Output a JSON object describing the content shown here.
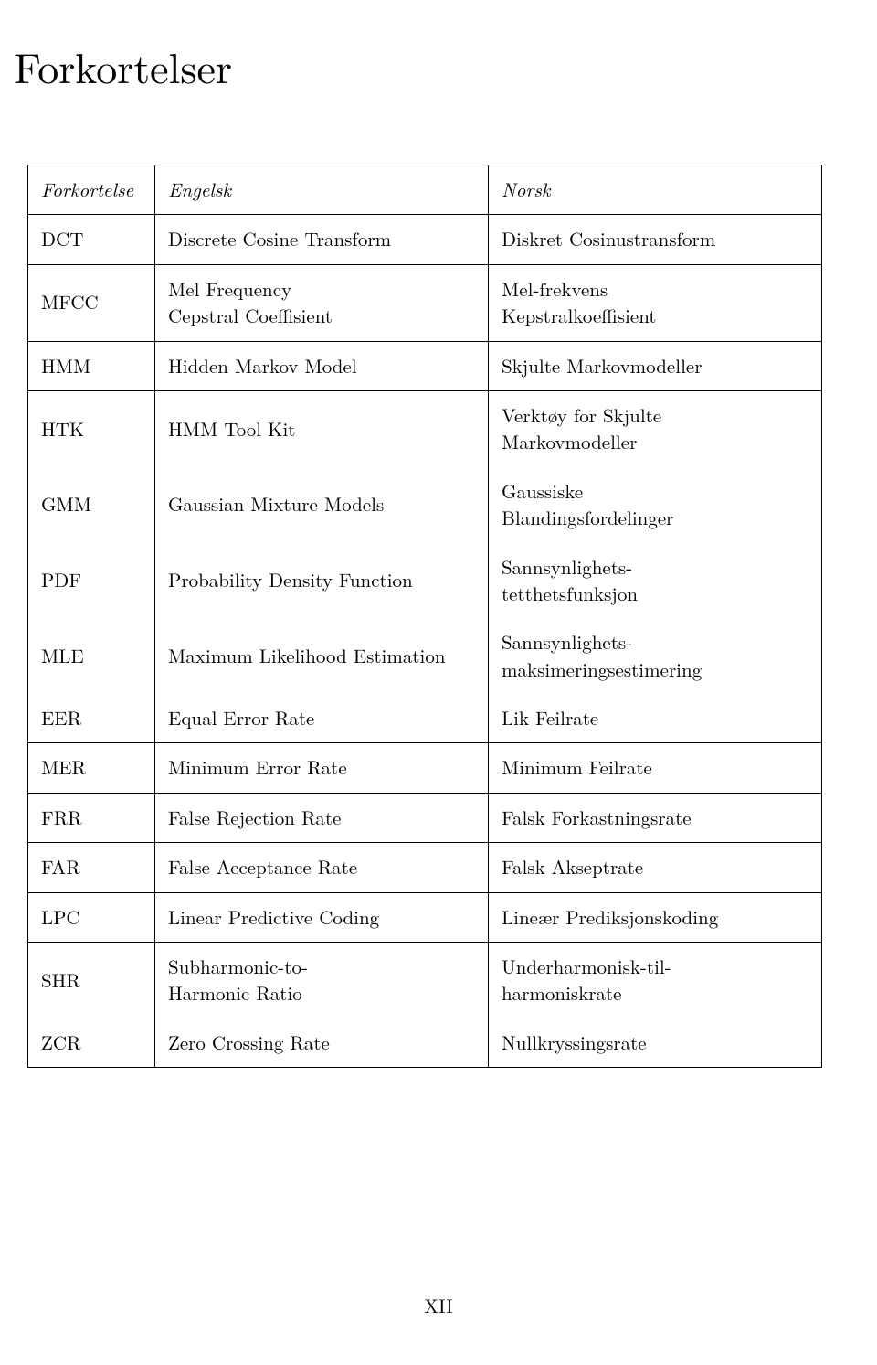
{
  "title": "Forkortelser",
  "columns": [
    "Forkortelse",
    "Engelsk",
    "Norsk"
  ],
  "rows": [
    {
      "abbr": "DCT",
      "english": "Discrete Cosine Transform",
      "norsk": "Diskret Cosinustransform"
    },
    {
      "abbr": "MFCC",
      "english": "Mel Frequency\nCepstral Coeffisient",
      "norsk": "Mel-frekvens\nKepstralkoeffisient"
    },
    {
      "abbr": "HMM",
      "english": "Hidden Markov Model",
      "norsk": "Skjulte Markovmodeller"
    },
    {
      "abbr": "HTK",
      "english": "HMM Tool Kit",
      "norsk": "Verktøy for Skjulte\nMarkovmodeller"
    },
    {
      "abbr": "GMM",
      "english": "Gaussian Mixture Models",
      "norsk": "Gaussiske\nBlandingsfordelinger"
    },
    {
      "abbr": "PDF",
      "english": "Probability Density Function",
      "norsk": "Sannsynlighets-\ntetthetsfunksjon"
    },
    {
      "abbr": "MLE",
      "english": "Maximum Likelihood Estimation",
      "norsk": "Sannsynlighets-\nmaksimeringsestimering"
    },
    {
      "abbr": "EER",
      "english": "Equal Error Rate",
      "norsk": "Lik Feilrate"
    },
    {
      "abbr": "MER",
      "english": "Minimum Error Rate",
      "norsk": "Minimum Feilrate"
    },
    {
      "abbr": "FRR",
      "english": "False Rejection Rate",
      "norsk": "Falsk Forkastningsrate"
    },
    {
      "abbr": "FAR",
      "english": "False Acceptance Rate",
      "norsk": "Falsk Akseptrate"
    },
    {
      "abbr": "LPC",
      "english": "Linear Predictive Coding",
      "norsk": "Lineær Prediksjonskoding"
    },
    {
      "abbr": "SHR",
      "english": "Subharmonic-to-\nHarmonic Ratio",
      "norsk": "Underharmonisk-til-\nharmoniskrate"
    },
    {
      "abbr": "ZCR",
      "english": "Zero Crossing Rate",
      "norsk": "Nullkryssingsrate"
    }
  ],
  "row_groups": [
    [
      0,
      0
    ],
    [
      1,
      1
    ],
    [
      2,
      2
    ],
    [
      3,
      7
    ],
    [
      8,
      8
    ],
    [
      9,
      9
    ],
    [
      10,
      10
    ],
    [
      11,
      11
    ],
    [
      12,
      13
    ]
  ],
  "page_number": "XII",
  "colors": {
    "background": "#ffffff",
    "text": "#000000",
    "border": "#000000"
  },
  "typography": {
    "title_fontsize": 46,
    "body_fontsize": 21,
    "font_family": "Latin Modern Roman"
  },
  "type": "table"
}
